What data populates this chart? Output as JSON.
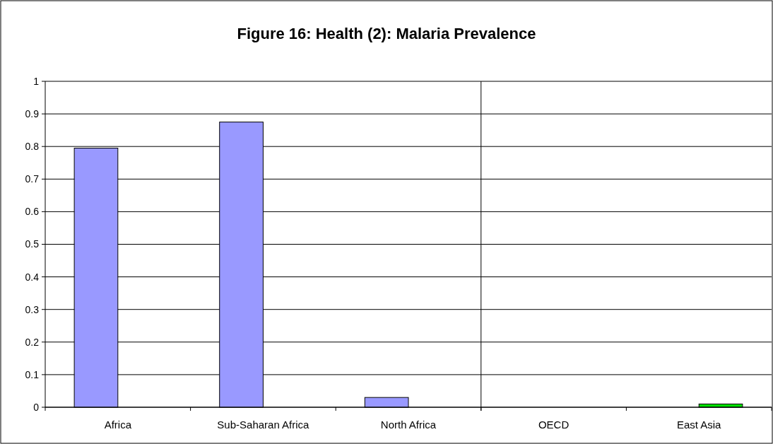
{
  "chart_data": [
    {
      "type": "bar",
      "title": "Figure 16: Health (2): Malaria Prevalence",
      "categories": [
        "Africa",
        "Sub-Saharan Africa",
        "North Africa"
      ],
      "series": [
        {
          "color": "#9999ff",
          "values": [
            0.795,
            0.875,
            0.03
          ]
        },
        {
          "color": "#00e000",
          "values": [
            0,
            0,
            0
          ]
        }
      ],
      "ylim": [
        0,
        1
      ],
      "yticks": [
        0,
        0.1,
        0.2,
        0.3,
        0.4,
        0.5,
        0.6,
        0.7,
        0.8,
        0.9,
        1
      ],
      "grid": "y"
    },
    {
      "type": "bar",
      "categories": [
        "OECD",
        "East Asia"
      ],
      "series": [
        {
          "color": "#9999ff",
          "values": [
            0,
            0
          ]
        },
        {
          "color": "#00e000",
          "values": [
            0,
            0.01
          ]
        }
      ],
      "ylim": [
        0,
        1
      ],
      "yticks": [
        0,
        0.1,
        0.2,
        0.3,
        0.4,
        0.5,
        0.6,
        0.7,
        0.8,
        0.9,
        1
      ],
      "grid": "y",
      "tick_labels": "x"
    }
  ]
}
